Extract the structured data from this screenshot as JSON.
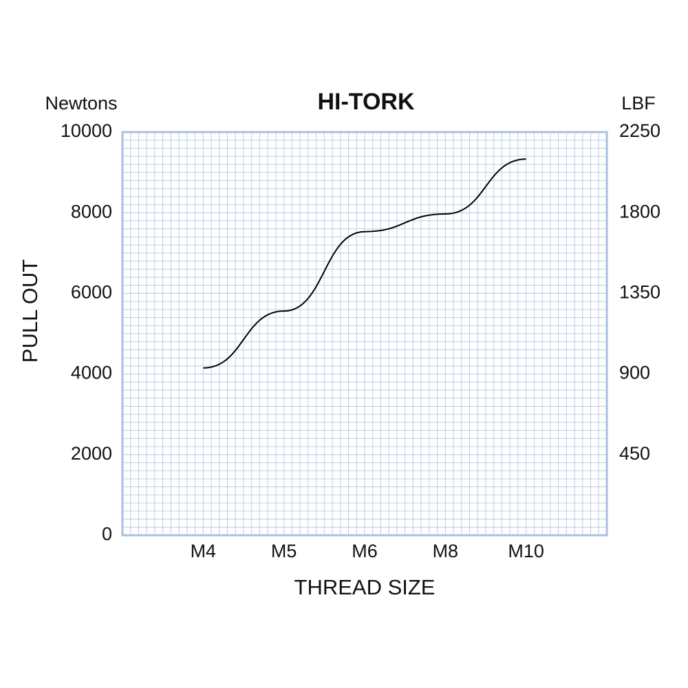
{
  "chart_data": {
    "type": "line",
    "title": "HI-TORK",
    "xlabel": "THREAD SIZE",
    "ylabel": "PULL OUT",
    "yunit": "Newtons",
    "y2unit": "LBF",
    "categories": [
      "M4",
      "M5",
      "M6",
      "M8",
      "M10"
    ],
    "values": [
      4150,
      5560,
      7530,
      7970,
      9330
    ],
    "color": "#000000",
    "ylim": [
      0,
      10000
    ],
    "yticks": [
      0,
      2000,
      4000,
      6000,
      8000,
      10000
    ],
    "y2lim": [
      0,
      2250
    ],
    "y2ticks": [
      450,
      900,
      1350,
      1800,
      2250
    ],
    "grid": true
  }
}
